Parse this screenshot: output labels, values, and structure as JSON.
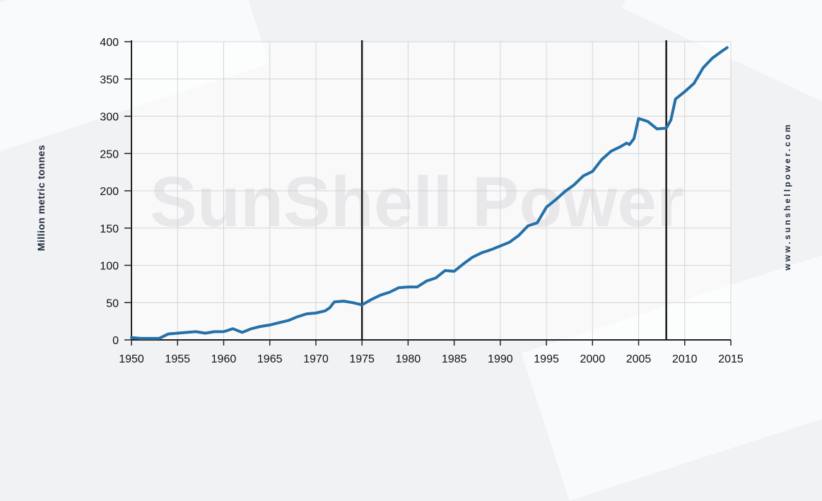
{
  "watermark": "SunShell Power",
  "side_text": "www.sunshellpower.com",
  "chart_data": {
    "type": "line",
    "title": "",
    "xlabel": "",
    "ylabel": "Million metric tonnes",
    "xlim": [
      1950,
      2015
    ],
    "ylim": [
      0,
      400
    ],
    "grid": true,
    "x_ticks": [
      1950,
      1955,
      1960,
      1965,
      1970,
      1975,
      1980,
      1985,
      1990,
      1995,
      2000,
      2005,
      2010,
      2015
    ],
    "y_ticks": [
      0,
      50,
      100,
      150,
      200,
      250,
      300,
      350,
      400
    ],
    "vertical_markers": [
      1975,
      2008
    ],
    "line_color": "#2470a8",
    "series": [
      {
        "x": [
          1950,
          1951,
          1952,
          1953,
          1954,
          1955,
          1956,
          1957,
          1958,
          1959,
          1960,
          1961,
          1962,
          1963,
          1964,
          1965,
          1966,
          1967,
          1968,
          1969,
          1970,
          1971,
          1971.5,
          1972,
          1973,
          1974,
          1975,
          1976,
          1977,
          1978,
          1979,
          1980,
          1981,
          1982,
          1983,
          1984,
          1985,
          1986,
          1987,
          1988,
          1989,
          1990,
          1991,
          1992,
          1993,
          1994,
          1995,
          1996,
          1997,
          1998,
          1999,
          2000,
          2001,
          2002,
          2003,
          2003.7,
          2004,
          2004.5,
          2005,
          2006,
          2007,
          2008,
          2008.5,
          2009,
          2010,
          2011,
          2012,
          2013,
          2014,
          2014.6
        ],
        "values": [
          3,
          2,
          2,
          2,
          8,
          9,
          10,
          11,
          9,
          11,
          11,
          15,
          10,
          15,
          18,
          20,
          23,
          26,
          31,
          35,
          36,
          39,
          43,
          51,
          52,
          50,
          47,
          54,
          60,
          64,
          70,
          71,
          71,
          79,
          83,
          93,
          92,
          102,
          111,
          117,
          121,
          126,
          131,
          140,
          153,
          157,
          178,
          188,
          199,
          208,
          220,
          226,
          242,
          253,
          259,
          264,
          262,
          270,
          297,
          293,
          283,
          284,
          295,
          323,
          333,
          344,
          365,
          378,
          387,
          392
        ]
      }
    ]
  }
}
